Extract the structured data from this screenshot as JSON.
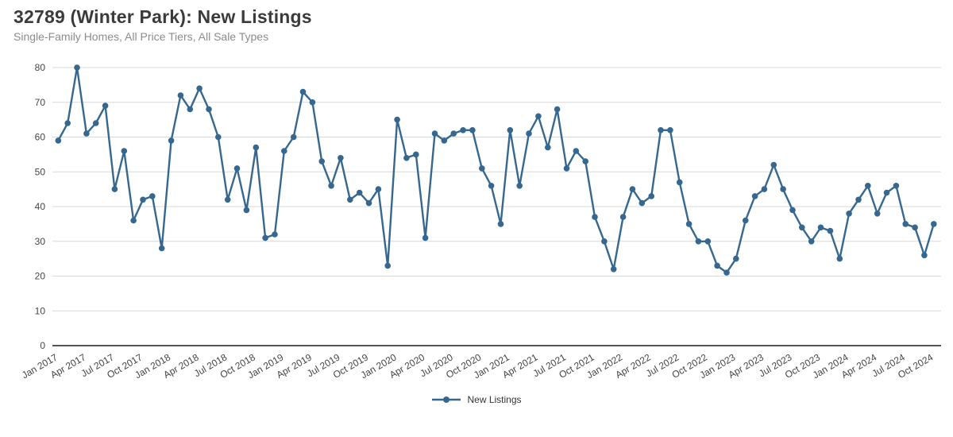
{
  "header": {
    "title": "32789 (Winter Park): New Listings",
    "subtitle": "Single-Family Homes, All Price Tiers, All Sale Types"
  },
  "legend": {
    "label": "New Listings",
    "position": "bottom-center"
  },
  "colors": {
    "series": "#36688f",
    "grid": "#d9d9d9",
    "axis": "#1a1a1a",
    "tick_text": "#454545",
    "title_text": "#3b3b3b",
    "subtitle_text": "#8c8c8c",
    "background": "#ffffff"
  },
  "chart_data": {
    "type": "line",
    "title": "32789 (Winter Park): New Listings",
    "subtitle": "Single-Family Homes, All Price Tiers, All Sale Types",
    "xlabel": "",
    "ylabel": "",
    "ylim": [
      0,
      80
    ],
    "yticks": [
      0,
      10,
      20,
      30,
      40,
      50,
      60,
      70,
      80
    ],
    "grid": "horizontal",
    "legend_position": "bottom-center",
    "marker": "circle",
    "tick_step": 3,
    "tick_labels": [
      "Jan 2017",
      "Apr 2017",
      "Jul 2017",
      "Oct 2017",
      "Jan 2018",
      "Apr 2018",
      "Jul 2018",
      "Oct 2018",
      "Jan 2019",
      "Apr 2019",
      "Jul 2019",
      "Oct 2019",
      "Jan 2020",
      "Apr 2020",
      "Jul 2020",
      "Oct 2020",
      "Jan 2021",
      "Apr 2021",
      "Jul 2021",
      "Oct 2021",
      "Jan 2022",
      "Apr 2022",
      "Jul 2022",
      "Oct 2022",
      "Jan 2023",
      "Apr 2023",
      "Jul 2023",
      "Oct 2023",
      "Jan 2024",
      "Apr 2024",
      "Jul 2024",
      "Oct 2024"
    ],
    "x": [
      "Jan 2017",
      "Feb 2017",
      "Mar 2017",
      "Apr 2017",
      "May 2017",
      "Jun 2017",
      "Jul 2017",
      "Aug 2017",
      "Sep 2017",
      "Oct 2017",
      "Nov 2017",
      "Dec 2017",
      "Jan 2018",
      "Feb 2018",
      "Mar 2018",
      "Apr 2018",
      "May 2018",
      "Jun 2018",
      "Jul 2018",
      "Aug 2018",
      "Sep 2018",
      "Oct 2018",
      "Nov 2018",
      "Dec 2018",
      "Jan 2019",
      "Feb 2019",
      "Mar 2019",
      "Apr 2019",
      "May 2019",
      "Jun 2019",
      "Jul 2019",
      "Aug 2019",
      "Sep 2019",
      "Oct 2019",
      "Nov 2019",
      "Dec 2019",
      "Jan 2020",
      "Feb 2020",
      "Mar 2020",
      "Apr 2020",
      "May 2020",
      "Jun 2020",
      "Jul 2020",
      "Aug 2020",
      "Sep 2020",
      "Oct 2020",
      "Nov 2020",
      "Dec 2020",
      "Jan 2021",
      "Feb 2021",
      "Mar 2021",
      "Apr 2021",
      "May 2021",
      "Jun 2021",
      "Jul 2021",
      "Aug 2021",
      "Sep 2021",
      "Oct 2021",
      "Nov 2021",
      "Dec 2021",
      "Jan 2022",
      "Feb 2022",
      "Mar 2022",
      "Apr 2022",
      "May 2022",
      "Jun 2022",
      "Jul 2022",
      "Aug 2022",
      "Sep 2022",
      "Oct 2022",
      "Nov 2022",
      "Dec 2022",
      "Jan 2023",
      "Feb 2023",
      "Mar 2023",
      "Apr 2023",
      "May 2023",
      "Jun 2023",
      "Jul 2023",
      "Aug 2023",
      "Sep 2023",
      "Oct 2023",
      "Nov 2023",
      "Dec 2023",
      "Jan 2024",
      "Feb 2024",
      "Mar 2024",
      "Apr 2024",
      "May 2024",
      "Jun 2024",
      "Jul 2024",
      "Aug 2024",
      "Sep 2024",
      "Oct 2024"
    ],
    "series": [
      {
        "name": "New Listings",
        "values": [
          59,
          64,
          80,
          61,
          64,
          69,
          45,
          56,
          36,
          42,
          43,
          28,
          59,
          72,
          68,
          74,
          68,
          60,
          42,
          51,
          39,
          57,
          31,
          32,
          56,
          60,
          73,
          70,
          53,
          46,
          54,
          42,
          44,
          41,
          45,
          23,
          65,
          54,
          55,
          31,
          61,
          59,
          61,
          62,
          62,
          51,
          46,
          35,
          62,
          46,
          61,
          66,
          57,
          68,
          51,
          56,
          53,
          37,
          30,
          22,
          37,
          45,
          41,
          43,
          62,
          62,
          47,
          35,
          30,
          30,
          23,
          21,
          25,
          36,
          43,
          45,
          52,
          45,
          39,
          34,
          30,
          34,
          33,
          25,
          38,
          42,
          46,
          38,
          44,
          46,
          35,
          34,
          26,
          35
        ]
      }
    ]
  }
}
